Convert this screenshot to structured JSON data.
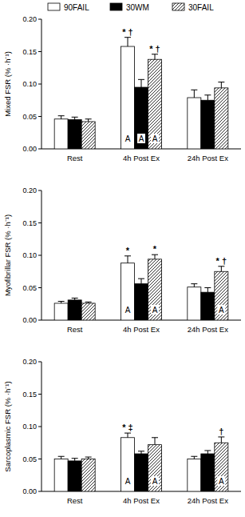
{
  "chart_data": [
    {
      "type": "bar",
      "y_label": "Mixed FSR (% ·h⁻¹)",
      "legend": "top",
      "categories": [
        "Rest",
        "4h Post Ex",
        "24h Post Ex"
      ],
      "ylim": [
        0,
        0.2
      ],
      "yticks": [
        {
          "value": 0,
          "label": "0.00"
        },
        {
          "value": 0.05,
          "label": "0.05"
        },
        {
          "value": 0.1,
          "label": "0.10"
        },
        {
          "value": 0.15,
          "label": "0.15"
        },
        {
          "value": 0.2,
          "label": "0.20"
        }
      ],
      "series": [
        {
          "name": "90FAIL",
          "color": "#ffffff",
          "values": [
            0.046,
            0.158,
            0.079
          ],
          "errors": [
            0.005,
            0.014,
            0.012
          ],
          "symbols": [
            null,
            "* †",
            null
          ],
          "inner_labels": [
            null,
            "A",
            null
          ]
        },
        {
          "name": "30WM",
          "color": "#000000",
          "values": [
            0.045,
            0.095,
            0.075
          ],
          "errors": [
            0.004,
            0.012,
            0.008
          ],
          "symbols": [
            null,
            null,
            null
          ],
          "inner_labels": [
            null,
            "A",
            null
          ]
        },
        {
          "name": "30FAIL",
          "color": "#ffffff",
          "values": [
            0.042,
            0.138,
            0.094
          ],
          "errors": [
            0.004,
            0.008,
            0.009
          ],
          "symbols": [
            null,
            "* †",
            null
          ],
          "inner_labels": [
            null,
            "A",
            null
          ]
        }
      ]
    },
    {
      "type": "bar",
      "y_label": "Myofibrillar FSR (% ·h⁻¹)",
      "categories": [
        "Rest",
        "4h Post Ex",
        "24h Post Ex"
      ],
      "ylim": [
        0,
        0.2
      ],
      "yticks": [
        {
          "value": 0,
          "label": "0.00"
        },
        {
          "value": 0.05,
          "label": "0.05"
        },
        {
          "value": 0.1,
          "label": "0.10"
        },
        {
          "value": 0.15,
          "label": "0.15"
        },
        {
          "value": 0.2,
          "label": "0.20"
        }
      ],
      "series": [
        {
          "color": "#ffffff",
          "values": [
            0.026,
            0.088,
            0.051
          ],
          "errors": [
            0.003,
            0.011,
            0.005
          ],
          "symbols": [
            null,
            "*",
            null
          ],
          "inner_labels": [
            null,
            "A",
            null
          ]
        },
        {
          "color": "#000000",
          "values": [
            0.031,
            0.056,
            0.043
          ],
          "errors": [
            0.003,
            0.008,
            0.007
          ],
          "symbols": [
            null,
            null,
            null
          ],
          "inner_labels": [
            null,
            null,
            null
          ]
        },
        {
          "color": "#ffffff",
          "values": [
            0.026,
            0.094,
            0.075
          ],
          "errors": [
            0.002,
            0.007,
            0.008
          ],
          "symbols": [
            null,
            "*",
            "* †"
          ],
          "inner_labels": [
            null,
            "A",
            "A"
          ]
        }
      ]
    },
    {
      "type": "bar",
      "y_label": "Sarcoplasmic FSR (% ·h⁻¹)",
      "categories": [
        "Rest",
        "4h Post Ex",
        "24h Post Ex"
      ],
      "ylim": [
        0,
        0.2
      ],
      "yticks": [
        {
          "value": 0,
          "label": "0.00"
        },
        {
          "value": 0.05,
          "label": "0.05"
        },
        {
          "value": 0.1,
          "label": "0.10"
        },
        {
          "value": 0.15,
          "label": "0.15"
        },
        {
          "value": 0.2,
          "label": "0.20"
        }
      ],
      "series": [
        {
          "color": "#ffffff",
          "values": [
            0.05,
            0.083,
            0.05
          ],
          "errors": [
            0.004,
            0.007,
            0.004
          ],
          "symbols": [
            null,
            "* ‡",
            null
          ],
          "inner_labels": [
            null,
            "A",
            null
          ]
        },
        {
          "color": "#000000",
          "values": [
            0.047,
            0.058,
            0.058
          ],
          "errors": [
            0.004,
            0.004,
            0.005
          ],
          "symbols": [
            null,
            null,
            null
          ],
          "inner_labels": [
            null,
            null,
            null
          ]
        },
        {
          "color": "#ffffff",
          "values": [
            0.05,
            0.072,
            0.075
          ],
          "errors": [
            0.003,
            0.011,
            0.009
          ],
          "symbols": [
            null,
            null,
            "†"
          ],
          "inner_labels": [
            null,
            "A",
            "A"
          ]
        }
      ]
    }
  ]
}
